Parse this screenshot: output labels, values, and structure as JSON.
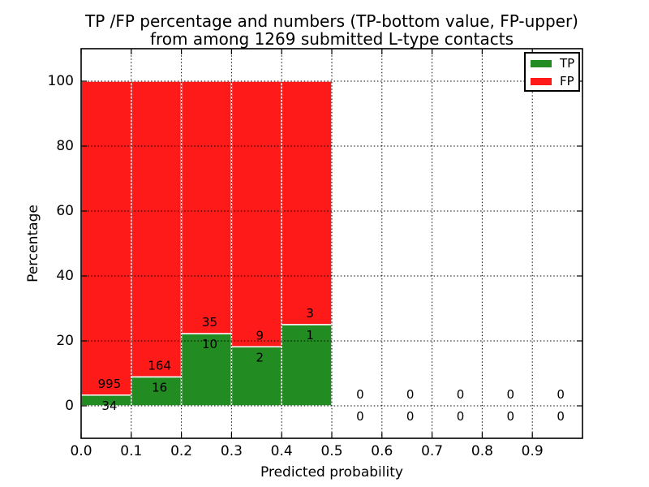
{
  "title": {
    "line1": "TP /FP percentage and numbers (TP-bottom value, FP-upper)",
    "line2": "from among 1269 submitted L-type contacts"
  },
  "chart_data": {
    "type": "bar",
    "stacked": true,
    "normalized_to_percent": true,
    "title": "TP /FP percentage and numbers (TP-bottom value, FP-upper)\nfrom among 1269 submitted L-type contacts",
    "xlabel": "Predicted probability",
    "ylabel": "Percentage",
    "xlim": [
      0.0,
      1.0
    ],
    "ylim": [
      -10,
      110
    ],
    "xticks": [
      "0.0",
      "0.1",
      "0.2",
      "0.3",
      "0.4",
      "0.5",
      "0.6",
      "0.7",
      "0.8",
      "0.9"
    ],
    "yticks": [
      0,
      20,
      40,
      60,
      80,
      100
    ],
    "bin_width": 0.1,
    "bin_starts": [
      0.0,
      0.1,
      0.2,
      0.3,
      0.4,
      0.5,
      0.6,
      0.7,
      0.8,
      0.9
    ],
    "series": [
      {
        "name": "TP",
        "color": "#228b22",
        "counts": [
          34,
          16,
          10,
          2,
          1,
          0,
          0,
          0,
          0,
          0
        ]
      },
      {
        "name": "FP",
        "color": "#ff1a1a",
        "counts": [
          995,
          164,
          35,
          9,
          3,
          0,
          0,
          0,
          0,
          0
        ]
      }
    ],
    "tp_percent_per_bin": [
      3.3,
      8.9,
      22.2,
      18.2,
      25.0,
      0,
      0,
      0,
      0,
      0
    ],
    "total_submitted": 1269,
    "grid": "dotted",
    "bar_edge_color": "#ffffff",
    "legend_position": "upper right",
    "legend": [
      {
        "label": "TP",
        "color": "#228b22"
      },
      {
        "label": "FP",
        "color": "#ff1a1a"
      }
    ]
  }
}
